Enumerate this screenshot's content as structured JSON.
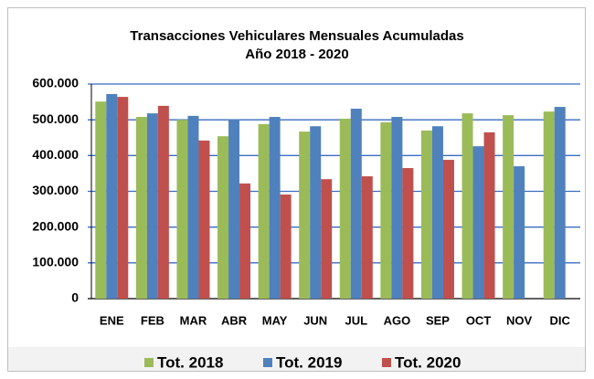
{
  "chart_data": {
    "type": "bar",
    "title": "Transacciones Vehiculares Mensuales  Acumuladas",
    "subtitle": "Año 2018 - 2020",
    "categories": [
      "ENE",
      "FEB",
      "MAR",
      "ABR",
      "MAY",
      "JUN",
      "JUL",
      "AGO",
      "SEP",
      "OCT",
      "NOV",
      "DIC"
    ],
    "series": [
      {
        "name": "Tot. 2018",
        "color": "#9bbb59",
        "values": [
          551000,
          508000,
          500000,
          454000,
          488000,
          467000,
          503000,
          493000,
          470000,
          518000,
          513000,
          523000
        ]
      },
      {
        "name": "Tot. 2019",
        "color": "#4f81bd",
        "values": [
          572000,
          518000,
          511000,
          498000,
          508000,
          482000,
          531000,
          508000,
          482000,
          426000,
          370000,
          536000
        ]
      },
      {
        "name": "Tot. 2020",
        "color": "#c0504d",
        "values": [
          564000,
          539000,
          442000,
          322000,
          291000,
          334000,
          342000,
          365000,
          388000,
          465000,
          null,
          null
        ]
      }
    ],
    "ylim": [
      0,
      600000
    ],
    "yticks": [
      0,
      {
        "value": 100000,
        "label": "100.000"
      },
      {
        "value": 200000,
        "label": "200.000"
      },
      {
        "value": 300000,
        "label": "300.000"
      },
      {
        "value": 400000,
        "label": "400.000"
      },
      {
        "value": 500000,
        "label": "500.000"
      },
      {
        "value": 600000,
        "label": "600.000"
      }
    ],
    "grid": true,
    "legend": "bottom"
  }
}
